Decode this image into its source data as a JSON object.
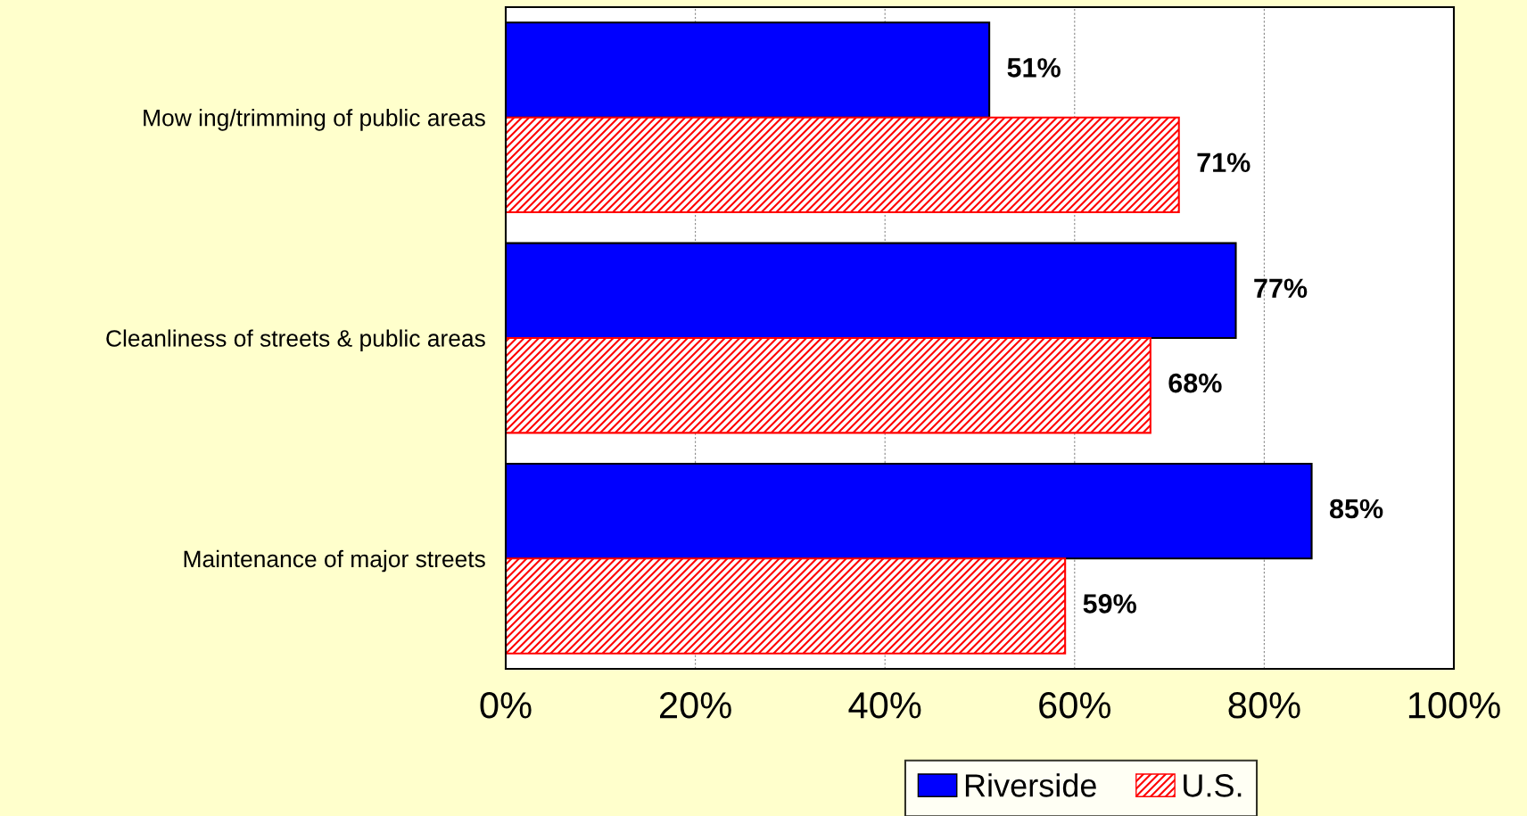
{
  "chart_data": {
    "type": "bar",
    "orientation": "horizontal",
    "categories": [
      "Mow ing/trimming of public areas",
      "Cleanliness of streets & public areas",
      "Maintenance of major streets"
    ],
    "series": [
      {
        "name": "Riverside",
        "color": "#0000ff",
        "values": [
          51,
          77,
          85
        ],
        "value_labels": [
          "51%",
          "77%",
          "85%"
        ]
      },
      {
        "name": "U.S.",
        "color": "#ff0000",
        "values": [
          71,
          68,
          59
        ],
        "value_labels": [
          "71%",
          "68%",
          "59%"
        ]
      }
    ],
    "xlim": [
      0,
      100
    ],
    "xticks": [
      {
        "value": 0,
        "label": "0%"
      },
      {
        "value": 20,
        "label": "20%"
      },
      {
        "value": 40,
        "label": "40%"
      },
      {
        "value": 60,
        "label": "60%"
      },
      {
        "value": 80,
        "label": "80%"
      },
      {
        "value": 100,
        "label": "100%"
      }
    ],
    "grid": "x",
    "legend": "bottom"
  }
}
